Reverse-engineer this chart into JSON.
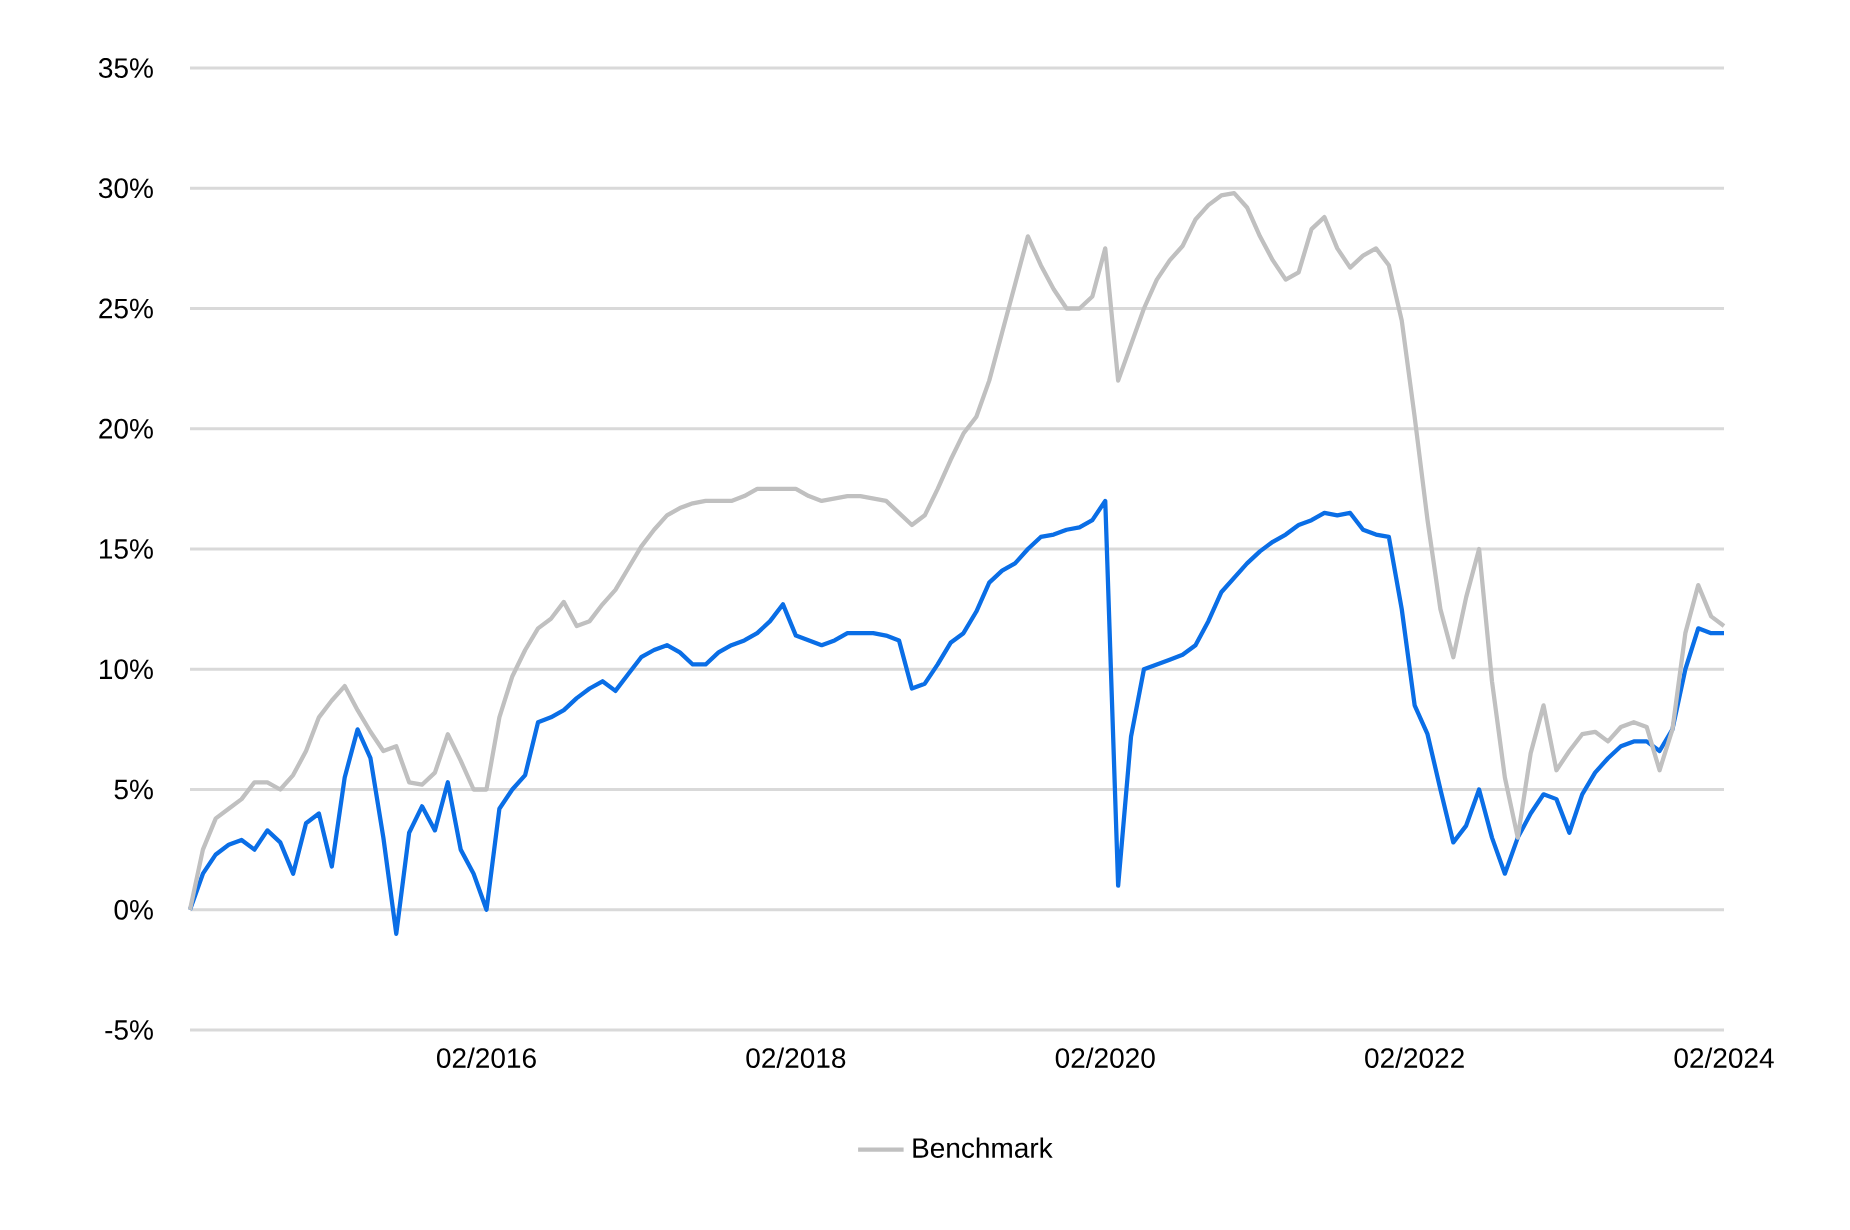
{
  "chart_data": {
    "type": "line",
    "x": [
      "2014-03",
      "2014-04",
      "2014-05",
      "2014-06",
      "2014-07",
      "2014-08",
      "2014-09",
      "2014-10",
      "2014-11",
      "2014-12",
      "2015-01",
      "2015-02",
      "2015-03",
      "2015-04",
      "2015-05",
      "2015-06",
      "2015-07",
      "2015-08",
      "2015-09",
      "2015-10",
      "2015-11",
      "2015-12",
      "2016-01",
      "2016-02",
      "2016-03",
      "2016-04",
      "2016-05",
      "2016-06",
      "2016-07",
      "2016-08",
      "2016-09",
      "2016-10",
      "2016-11",
      "2016-12",
      "2017-01",
      "2017-02",
      "2017-03",
      "2017-04",
      "2017-05",
      "2017-06",
      "2017-07",
      "2017-08",
      "2017-09",
      "2017-10",
      "2017-11",
      "2017-12",
      "2018-01",
      "2018-02",
      "2018-03",
      "2018-04",
      "2018-05",
      "2018-06",
      "2018-07",
      "2018-08",
      "2018-09",
      "2018-10",
      "2018-11",
      "2018-12",
      "2019-01",
      "2019-02",
      "2019-03",
      "2019-04",
      "2019-05",
      "2019-06",
      "2019-07",
      "2019-08",
      "2019-09",
      "2019-10",
      "2019-11",
      "2019-12",
      "2020-01",
      "2020-02",
      "2020-03",
      "2020-04",
      "2020-05",
      "2020-06",
      "2020-07",
      "2020-08",
      "2020-09",
      "2020-10",
      "2020-11",
      "2020-12",
      "2021-01",
      "2021-02",
      "2021-03",
      "2021-04",
      "2021-05",
      "2021-06",
      "2021-07",
      "2021-08",
      "2021-09",
      "2021-10",
      "2021-11",
      "2021-12",
      "2022-01",
      "2022-02",
      "2022-03",
      "2022-04",
      "2022-05",
      "2022-06",
      "2022-07",
      "2022-08",
      "2022-09",
      "2022-10",
      "2022-11",
      "2022-12",
      "2023-01",
      "2023-02",
      "2023-03",
      "2023-04",
      "2023-05",
      "2023-06",
      "2023-07",
      "2023-08",
      "2023-09",
      "2023-10",
      "2023-11",
      "2023-12",
      "2024-01",
      "2024-02"
    ],
    "series": [
      {
        "color": "#0a6ee6",
        "values": [
          0,
          1.5,
          2.3,
          2.7,
          2.9,
          2.5,
          3.3,
          2.8,
          1.5,
          3.6,
          4,
          1.8,
          5.5,
          7.5,
          6.3,
          3,
          -1,
          3.2,
          4.3,
          3.3,
          5.3,
          2.5,
          1.5,
          0,
          4.2,
          5,
          5.6,
          7.8,
          8,
          8.3,
          8.8,
          9.2,
          9.5,
          9.1,
          9.8,
          10.5,
          10.8,
          11,
          10.7,
          10.2,
          10.2,
          10.7,
          11,
          11.2,
          11.5,
          12,
          12.7,
          11.4,
          11.2,
          11,
          11.2,
          11.5,
          11.5,
          11.5,
          11.4,
          11.2,
          9.2,
          9.4,
          10.2,
          11.1,
          11.5,
          12.4,
          13.6,
          14.1,
          14.4,
          15,
          15.5,
          15.6,
          15.8,
          15.9,
          16.2,
          17,
          1,
          7.2,
          10,
          10.2,
          10.4,
          10.6,
          11,
          12,
          13.2,
          13.8,
          14.4,
          14.9,
          15.3,
          15.6,
          16,
          16.2,
          16.5,
          16.4,
          16.5,
          15.8,
          15.6,
          15.5,
          12.5,
          8.5,
          7.3,
          5,
          2.8,
          3.5,
          5,
          3,
          1.5,
          3,
          4,
          4.8,
          4.6,
          3.2,
          4.8,
          5.7,
          6.3,
          6.8,
          7,
          7,
          6.6,
          7.5,
          10,
          11.7,
          11.5,
          11.5
        ]
      },
      {
        "name": "Benchmark",
        "color": "#c0c0c0",
        "values": [
          0,
          2.5,
          3.8,
          4.2,
          4.6,
          5.3,
          5.3,
          5,
          5.6,
          6.6,
          8,
          8.7,
          9.3,
          8.3,
          7.4,
          6.6,
          6.8,
          5.3,
          5.2,
          5.7,
          7.3,
          6.2,
          5,
          5,
          8,
          9.7,
          10.8,
          11.7,
          12.1,
          12.8,
          11.8,
          12,
          12.7,
          13.3,
          14.2,
          15.1,
          15.8,
          16.4,
          16.7,
          16.9,
          17,
          17,
          17,
          17.2,
          17.5,
          17.5,
          17.5,
          17.5,
          17.2,
          17,
          17.1,
          17.2,
          17.2,
          17.1,
          17,
          16.5,
          16,
          16.4,
          17.5,
          18.7,
          19.8,
          20.5,
          22,
          24,
          26,
          28,
          26.8,
          25.8,
          25,
          25,
          25.5,
          27.5,
          22,
          23.5,
          25,
          26.2,
          27,
          27.6,
          28.7,
          29.3,
          29.7,
          29.8,
          29.2,
          28,
          27,
          26.2,
          26.5,
          28.3,
          28.8,
          27.5,
          26.7,
          27.2,
          27.5,
          26.8,
          24.5,
          20.5,
          16.2,
          12.5,
          10.5,
          13,
          15,
          9.5,
          5.5,
          3,
          6.5,
          8.5,
          5.8,
          6.6,
          7.3,
          7.4,
          7,
          7.6,
          7.8,
          7.6,
          5.8,
          7.5,
          11.5,
          13.5,
          12.2,
          11.8
        ]
      }
    ],
    "xlim": [
      "2014-03",
      "2024-02"
    ],
    "xticks": [
      {
        "value": "2016-02",
        "label": "02/2016"
      },
      {
        "value": "2018-02",
        "label": "02/2018"
      },
      {
        "value": "2020-02",
        "label": "02/2020"
      },
      {
        "value": "2022-02",
        "label": "02/2022"
      },
      {
        "value": "2024-02",
        "label": "02/2024"
      }
    ],
    "ylim": [
      -5,
      35
    ],
    "yticks": [
      {
        "value": -5,
        "label": "-5%"
      },
      {
        "value": 0,
        "label": "0%"
      },
      {
        "value": 5,
        "label": "5%"
      },
      {
        "value": 10,
        "label": "10%"
      },
      {
        "value": 15,
        "label": "15%"
      },
      {
        "value": 20,
        "label": "20%"
      },
      {
        "value": 25,
        "label": "25%"
      },
      {
        "value": 30,
        "label": "30%"
      },
      {
        "value": 35,
        "label": "35%"
      }
    ],
    "grid": "y",
    "legend": "bottom",
    "marker": "none",
    "line_style": "solid"
  }
}
